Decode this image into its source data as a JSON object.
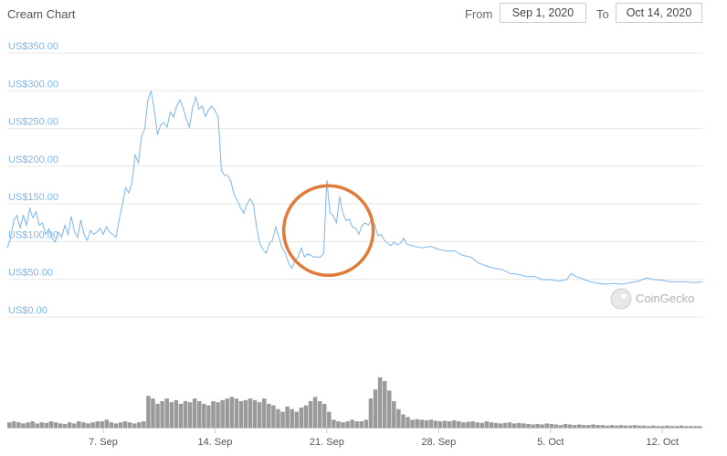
{
  "header": {
    "title": "Cream Chart",
    "from_label": "From",
    "from_value": "Sep 1, 2020",
    "to_label": "To",
    "to_value": "Oct 14, 2020"
  },
  "watermark": "CoinGecko",
  "colors": {
    "line": "#7cb5ec",
    "volume": "#9a9a9a",
    "annotation": "#e07b39",
    "grid": "#e6e6e6"
  },
  "chart_data": {
    "type": "line",
    "title": "Cream Chart",
    "ylim": [
      0,
      350
    ],
    "y_tick_values": [
      0,
      50,
      100,
      150,
      200,
      250,
      300,
      350
    ],
    "y_tick_labels": [
      "US$0.00",
      "US$50.00",
      "US$100.00",
      "US$150.00",
      "US$200.00",
      "US$250.00",
      "US$300.00",
      "US$350.00"
    ],
    "x_range_days": [
      0,
      43.5
    ],
    "x_tick_labels": [
      "7. Sep",
      "14. Sep",
      "21. Sep",
      "28. Sep",
      "5. Oct",
      "12. Oct"
    ],
    "x_tick_days": [
      6,
      13,
      20,
      27,
      34,
      41
    ],
    "grid": true,
    "series": [
      {
        "points": [
          [
            0,
            82
          ],
          [
            0.2,
            95
          ],
          [
            0.4,
            118
          ],
          [
            0.6,
            125
          ],
          [
            0.8,
            108
          ],
          [
            1.0,
            125
          ],
          [
            1.2,
            112
          ],
          [
            1.4,
            134
          ],
          [
            1.6,
            122
          ],
          [
            1.8,
            130
          ],
          [
            2.0,
            112
          ],
          [
            2.2,
            115
          ],
          [
            2.4,
            100
          ],
          [
            2.6,
            107
          ],
          [
            2.8,
            95
          ],
          [
            3.0,
            90
          ],
          [
            3.2,
            103
          ],
          [
            3.4,
            96
          ],
          [
            3.6,
            112
          ],
          [
            3.8,
            100
          ],
          [
            4.0,
            124
          ],
          [
            4.2,
            104
          ],
          [
            4.4,
            96
          ],
          [
            4.6,
            119
          ],
          [
            4.8,
            100
          ],
          [
            5.0,
            92
          ],
          [
            5.2,
            105
          ],
          [
            5.4,
            100
          ],
          [
            5.6,
            103
          ],
          [
            5.8,
            108
          ],
          [
            6.0,
            100
          ],
          [
            6.2,
            110
          ],
          [
            6.4,
            103
          ],
          [
            6.6,
            100
          ],
          [
            6.8,
            96
          ],
          [
            7.0,
            119
          ],
          [
            7.2,
            140
          ],
          [
            7.4,
            162
          ],
          [
            7.6,
            155
          ],
          [
            7.8,
            168
          ],
          [
            8.0,
            205
          ],
          [
            8.2,
            195
          ],
          [
            8.4,
            230
          ],
          [
            8.6,
            240
          ],
          [
            8.8,
            278
          ],
          [
            9.0,
            290
          ],
          [
            9.2,
            265
          ],
          [
            9.4,
            232
          ],
          [
            9.6,
            245
          ],
          [
            9.8,
            248
          ],
          [
            10.0,
            242
          ],
          [
            10.2,
            262
          ],
          [
            10.4,
            255
          ],
          [
            10.6,
            270
          ],
          [
            10.8,
            278
          ],
          [
            11.0,
            268
          ],
          [
            11.2,
            253
          ],
          [
            11.4,
            242
          ],
          [
            11.6,
            268
          ],
          [
            11.8,
            282
          ],
          [
            12.0,
            266
          ],
          [
            12.2,
            270
          ],
          [
            12.4,
            256
          ],
          [
            12.6,
            265
          ],
          [
            12.8,
            270
          ],
          [
            13.0,
            264
          ],
          [
            13.2,
            255
          ],
          [
            13.4,
            185
          ],
          [
            13.6,
            178
          ],
          [
            13.8,
            178
          ],
          [
            14.0,
            170
          ],
          [
            14.2,
            152
          ],
          [
            14.4,
            145
          ],
          [
            14.6,
            135
          ],
          [
            14.8,
            128
          ],
          [
            15.0,
            140
          ],
          [
            15.2,
            147
          ],
          [
            15.4,
            140
          ],
          [
            15.6,
            110
          ],
          [
            15.8,
            88
          ],
          [
            16.0,
            80
          ],
          [
            16.2,
            75
          ],
          [
            16.4,
            88
          ],
          [
            16.6,
            92
          ],
          [
            16.8,
            110
          ],
          [
            17.0,
            96
          ],
          [
            17.2,
            82
          ],
          [
            17.4,
            75
          ],
          [
            17.6,
            62
          ],
          [
            17.8,
            55
          ],
          [
            18.0,
            65
          ],
          [
            18.2,
            70
          ],
          [
            18.4,
            82
          ],
          [
            18.6,
            70
          ],
          [
            18.8,
            74
          ],
          [
            19.0,
            72
          ],
          [
            19.2,
            70
          ],
          [
            19.4,
            70
          ],
          [
            19.6,
            70
          ],
          [
            19.8,
            75
          ],
          [
            20.0,
            172
          ],
          [
            20.2,
            128
          ],
          [
            20.4,
            125
          ],
          [
            20.6,
            115
          ],
          [
            20.8,
            150
          ],
          [
            21.0,
            128
          ],
          [
            21.2,
            118
          ],
          [
            21.4,
            120
          ],
          [
            21.6,
            110
          ],
          [
            21.8,
            108
          ],
          [
            22.0,
            100
          ],
          [
            22.2,
            112
          ],
          [
            22.4,
            115
          ],
          [
            22.6,
            112
          ],
          [
            22.8,
            120
          ],
          [
            23.0,
            112
          ],
          [
            23.2,
            98
          ],
          [
            23.4,
            100
          ],
          [
            23.6,
            92
          ],
          [
            23.8,
            88
          ],
          [
            24.0,
            85
          ],
          [
            24.2,
            90
          ],
          [
            24.4,
            86
          ],
          [
            24.6,
            88
          ],
          [
            24.8,
            95
          ],
          [
            25.0,
            87
          ],
          [
            25.5,
            84
          ],
          [
            26.0,
            82
          ],
          [
            26.5,
            84
          ],
          [
            27.0,
            80
          ],
          [
            27.5,
            78
          ],
          [
            28.0,
            78
          ],
          [
            28.5,
            72
          ],
          [
            29.0,
            70
          ],
          [
            29.5,
            62
          ],
          [
            30.0,
            58
          ],
          [
            30.5,
            55
          ],
          [
            31.0,
            53
          ],
          [
            31.5,
            48
          ],
          [
            32.0,
            47
          ],
          [
            32.5,
            44
          ],
          [
            33.0,
            44
          ],
          [
            33.5,
            40
          ],
          [
            34.0,
            40
          ],
          [
            34.5,
            38
          ],
          [
            35.0,
            40
          ],
          [
            35.3,
            48
          ],
          [
            35.6,
            44
          ],
          [
            36.0,
            41
          ],
          [
            36.5,
            37
          ],
          [
            37.0,
            35
          ],
          [
            37.5,
            34
          ],
          [
            38.0,
            35
          ],
          [
            38.5,
            34
          ],
          [
            39.0,
            36
          ],
          [
            39.5,
            38
          ],
          [
            40.0,
            42
          ],
          [
            40.5,
            40
          ],
          [
            41.0,
            39
          ],
          [
            41.5,
            37
          ],
          [
            42.0,
            37
          ],
          [
            42.5,
            37
          ],
          [
            43.0,
            36
          ],
          [
            43.5,
            37
          ]
        ]
      }
    ],
    "volume_bars": {
      "relative_heights": [
        0.1,
        0.12,
        0.1,
        0.08,
        0.1,
        0.12,
        0.08,
        0.1,
        0.09,
        0.12,
        0.1,
        0.08,
        0.07,
        0.1,
        0.08,
        0.12,
        0.1,
        0.08,
        0.1,
        0.12,
        0.12,
        0.15,
        0.1,
        0.08,
        0.1,
        0.12,
        0.1,
        0.08,
        0.1,
        0.12,
        0.6,
        0.55,
        0.45,
        0.5,
        0.55,
        0.48,
        0.52,
        0.45,
        0.5,
        0.48,
        0.55,
        0.5,
        0.45,
        0.42,
        0.5,
        0.48,
        0.52,
        0.55,
        0.58,
        0.55,
        0.5,
        0.52,
        0.55,
        0.52,
        0.48,
        0.55,
        0.45,
        0.42,
        0.35,
        0.3,
        0.4,
        0.35,
        0.3,
        0.38,
        0.42,
        0.5,
        0.58,
        0.5,
        0.45,
        0.3,
        0.15,
        0.12,
        0.1,
        0.12,
        0.15,
        0.12,
        0.12,
        0.15,
        0.55,
        0.72,
        0.95,
        0.88,
        0.7,
        0.5,
        0.35,
        0.25,
        0.2,
        0.15,
        0.16,
        0.15,
        0.14,
        0.15,
        0.13,
        0.12,
        0.13,
        0.12,
        0.14,
        0.12,
        0.1,
        0.11,
        0.12,
        0.1,
        0.09,
        0.12,
        0.1,
        0.09,
        0.08,
        0.09,
        0.1,
        0.08,
        0.09,
        0.08,
        0.07,
        0.06,
        0.07,
        0.06,
        0.08,
        0.07,
        0.06,
        0.05,
        0.07,
        0.06,
        0.05,
        0.06,
        0.05,
        0.05,
        0.06,
        0.05,
        0.05,
        0.04,
        0.05,
        0.04,
        0.05,
        0.04,
        0.04,
        0.05,
        0.04,
        0.04,
        0.03,
        0.04,
        0.03,
        0.03,
        0.04,
        0.03,
        0.03,
        0.04,
        0.03,
        0.03,
        0.03,
        0.03
      ]
    },
    "annotations": [
      {
        "shape": "circle",
        "center": [
          20.1,
          105
        ],
        "note": "hand-drawn orange circle around spike"
      }
    ]
  }
}
